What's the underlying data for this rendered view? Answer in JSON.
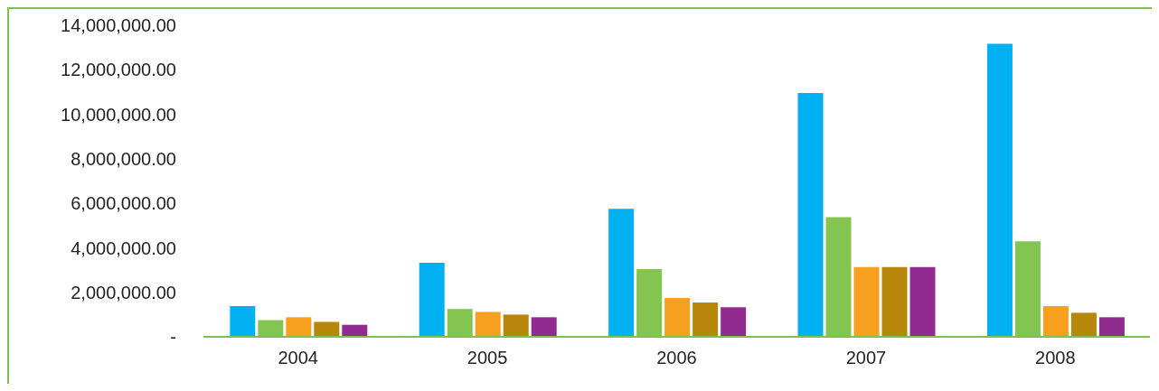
{
  "chart_data": {
    "type": "bar",
    "categories": [
      "2004",
      "2005",
      "2006",
      "2007",
      "2008"
    ],
    "series": [
      {
        "color": "#00b0f0",
        "values": [
          1380000,
          3330000,
          5750000,
          10960000,
          13170000
        ]
      },
      {
        "color": "#84c450",
        "values": [
          750000,
          1250000,
          3040000,
          5380000,
          4290000
        ]
      },
      {
        "color": "#f7a020",
        "values": [
          880000,
          1120000,
          1750000,
          3130000,
          1380000
        ]
      },
      {
        "color": "#b8860b",
        "values": [
          670000,
          1000000,
          1540000,
          3130000,
          1080000
        ]
      },
      {
        "color": "#922b8f",
        "values": [
          540000,
          880000,
          1330000,
          3130000,
          880000
        ]
      }
    ],
    "ylim": [
      0,
      14000000
    ],
    "yticks": [
      {
        "value": 0,
        "label": "-"
      },
      {
        "value": 2000000,
        "label": "2,000,000.00"
      },
      {
        "value": 4000000,
        "label": "4,000,000.00"
      },
      {
        "value": 6000000,
        "label": "6,000,000.00"
      },
      {
        "value": 8000000,
        "label": "8,000,000.00"
      },
      {
        "value": 10000000,
        "label": "10,000,000.00"
      },
      {
        "value": 12000000,
        "label": "12,000,000.00"
      },
      {
        "value": 14000000,
        "label": "14,000,000.00"
      }
    ],
    "grid": false
  }
}
